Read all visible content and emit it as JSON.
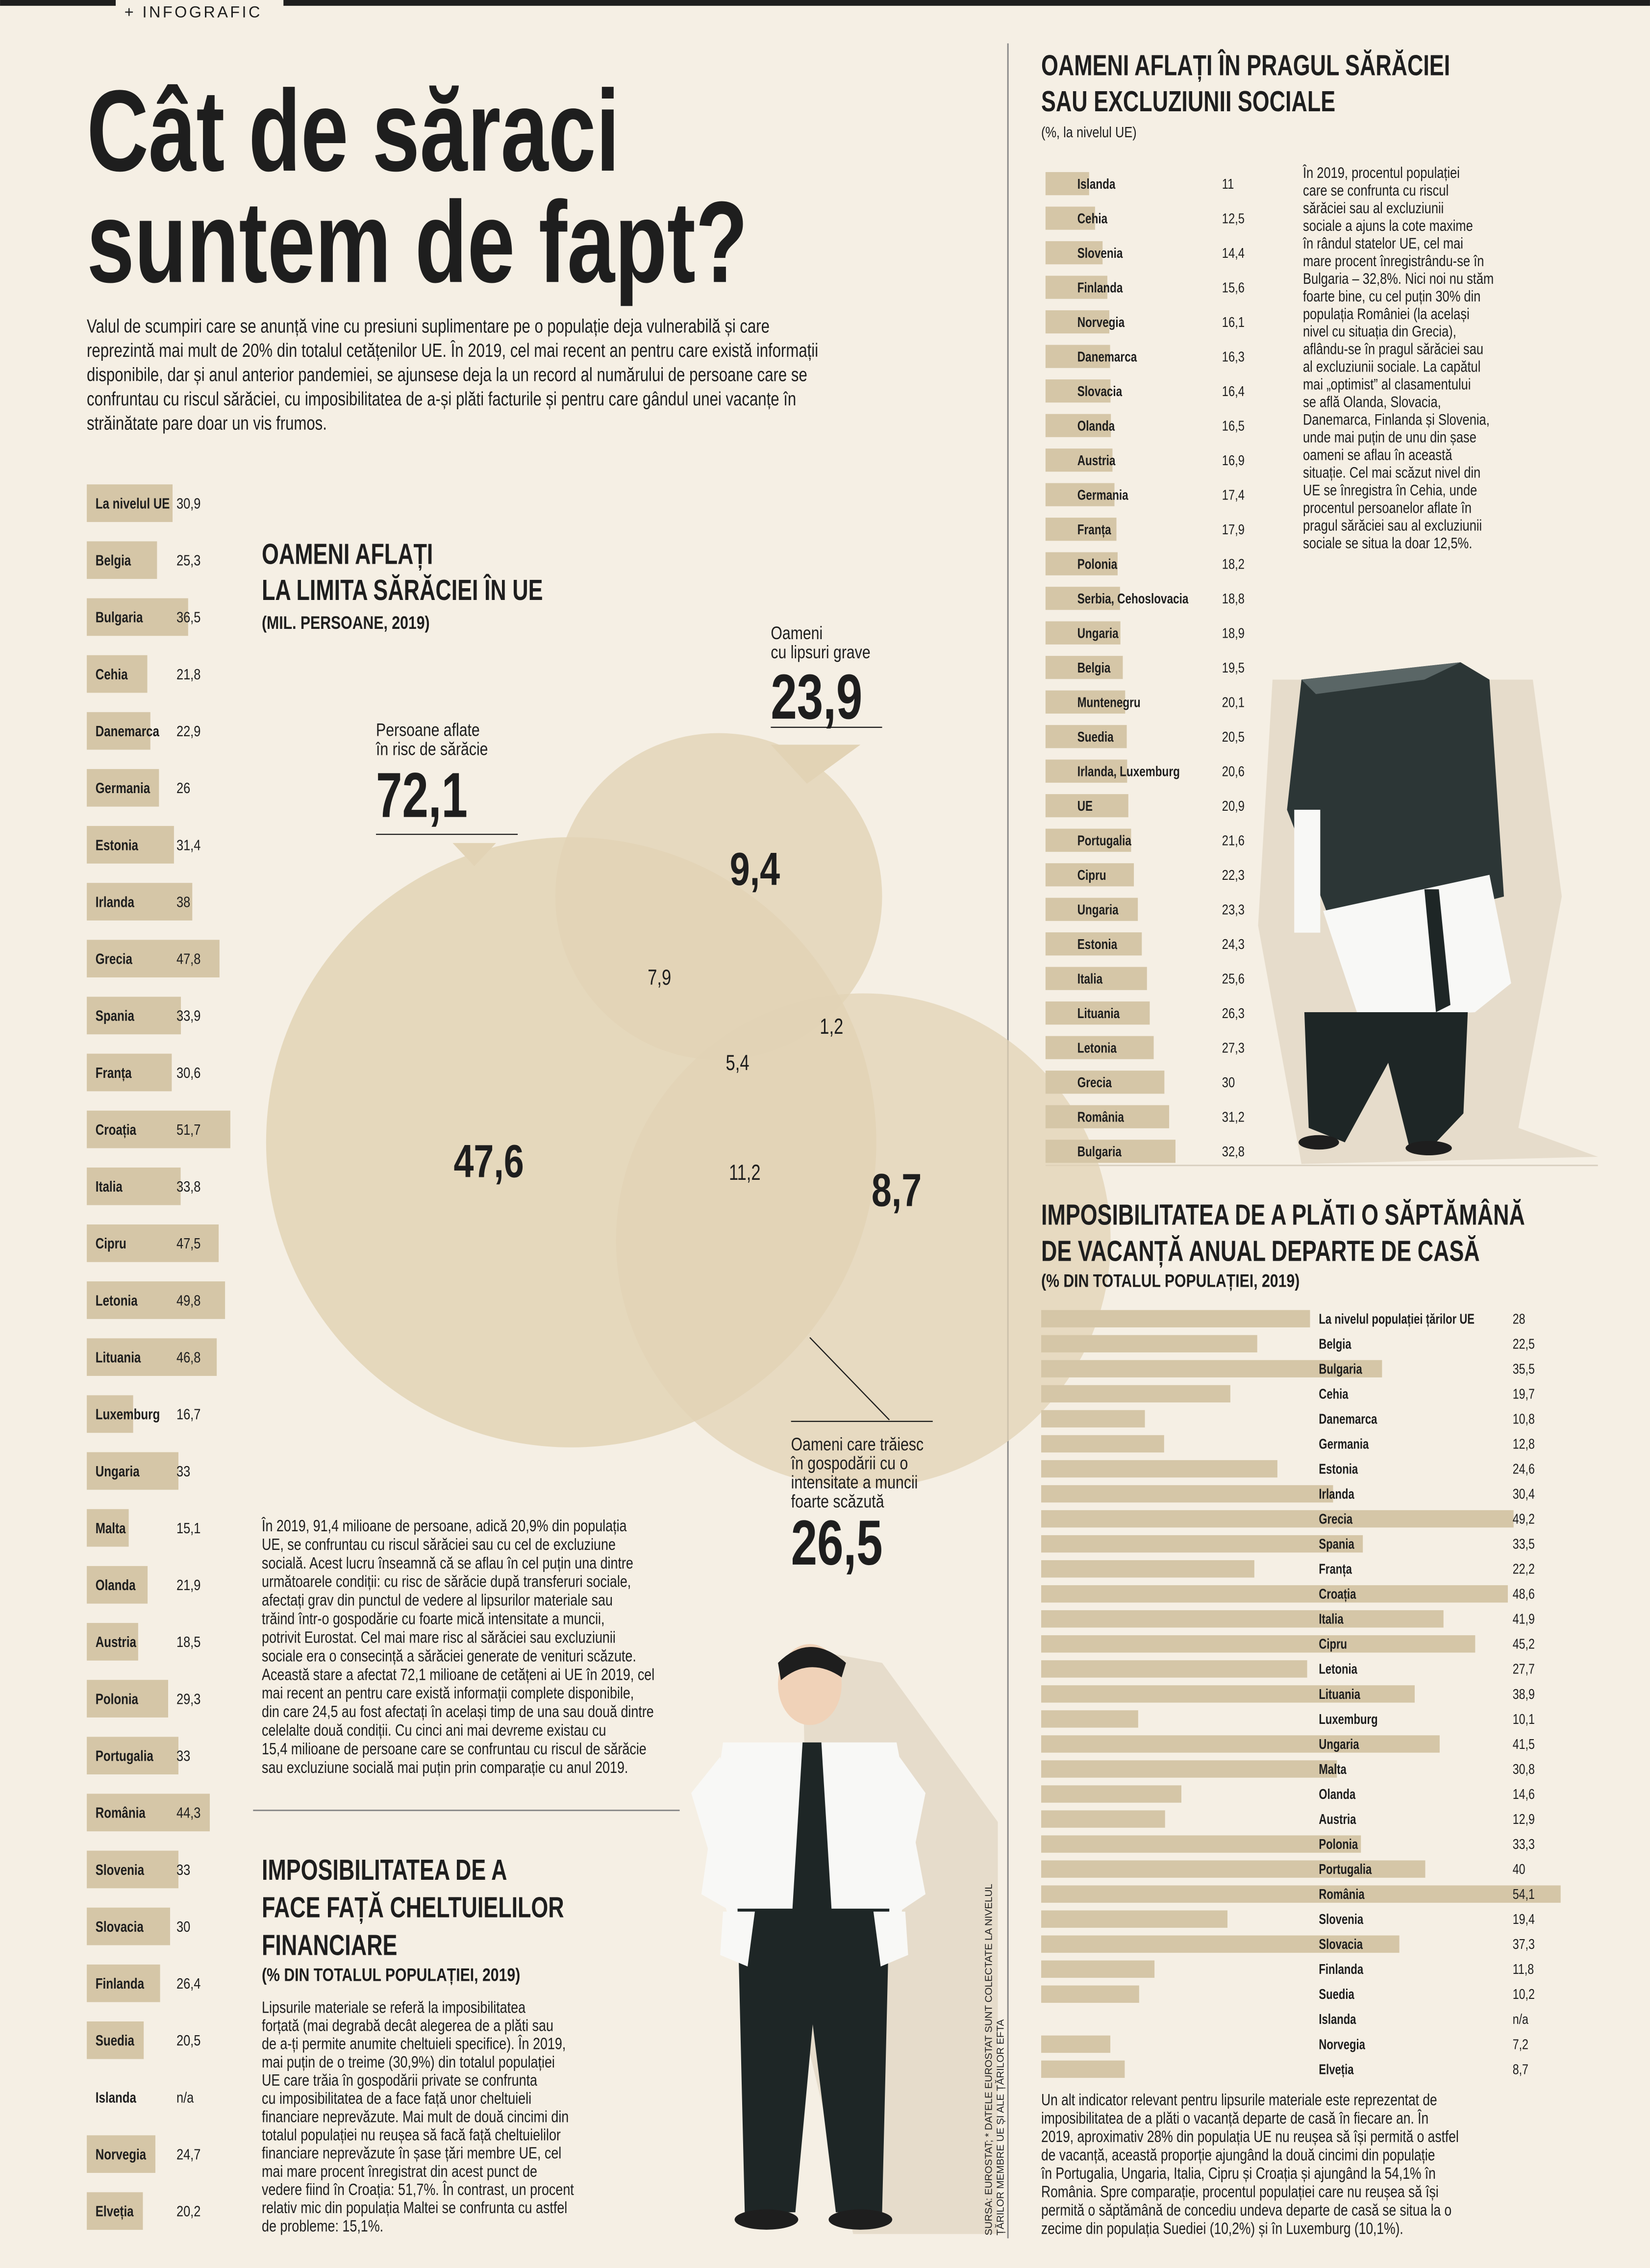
{
  "header": {
    "tag": "+ INFOGRAFIC",
    "title": [
      "Cât de săraci",
      "suntem de fapt?"
    ],
    "intro": [
      "Valul de scumpiri care se anunță vine cu presiuni suplimentare pe o populație deja vulnerabilă și care",
      "reprezintă mai mult de 20% din totalul cetățenilor UE. În 2019, cel mai recent an pentru care există informații",
      "disponibile, dar și anul anterior pandemiei, se ajunsese deja la un record al numărului de persoane care se",
      "confruntau cu riscul sărăciei, cu imposibilitatea de a-și plăti facturile și pentru care gândul unei vacanțe în",
      "străinătate pare doar un vis frumos."
    ]
  },
  "chart_data": [
    {
      "type": "bar",
      "title": [
        "IMPOSIBILITATEA DE A",
        "FACE FAȚĂ CHELTUIELILOR",
        "FINANCIARE"
      ],
      "subtitle": "(% DIN TOTALUL POPULAȚIEI, 2019)",
      "color": "#d5c6a7",
      "categories": [
        "La nivelul UE",
        "Belgia",
        "Bulgaria",
        "Cehia",
        "Danemarca",
        "Germania",
        "Estonia",
        "Irlanda",
        "Grecia",
        "Spania",
        "Franța",
        "Croația",
        "Italia",
        "Cipru",
        "Letonia",
        "Lituania",
        "Luxemburg",
        "Ungaria",
        "Malta",
        "Olanda",
        "Austria",
        "Polonia",
        "Portugalia",
        "România",
        "Slovenia",
        "Slovacia",
        "Finlanda",
        "Suedia",
        "Islanda",
        "Norvegia",
        "Elveția"
      ],
      "values": [
        30.9,
        25.3,
        36.5,
        21.8,
        22.9,
        26,
        31.4,
        38,
        47.8,
        33.9,
        30.6,
        51.7,
        33.8,
        47.5,
        49.8,
        46.8,
        16.7,
        33,
        15.1,
        21.9,
        18.5,
        29.3,
        33,
        44.3,
        33,
        30,
        26.4,
        20.5,
        null,
        24.7,
        20.2
      ],
      "value_labels": [
        "30,9",
        "25,3",
        "36,5",
        "21,8",
        "22,9",
        "26",
        "31,4",
        "38",
        "47,8",
        "33,9",
        "30,6",
        "51,7",
        "33,8",
        "47,5",
        "49,8",
        "46,8",
        "16,7",
        "33",
        "15,1",
        "21,9",
        "18,5",
        "29,3",
        "33",
        "44,3",
        "33",
        "30",
        "26,4",
        "20,5",
        "n/a",
        "24,7",
        "20,2"
      ],
      "text": [
        "Lipsurile materiale se referă la imposibilitatea",
        "forțată (mai degrabă decât alegerea de a plăti sau",
        "de a-ți permite anumite cheltuieli specifice). În 2019,",
        "mai puțin de o treime (30,9%) din totalul populației",
        "UE care trăia în gospodării private se confrunta",
        "cu imposibilitatea de a face față unor cheltuieli",
        "financiare neprevăzute. Mai mult de două cincimi din",
        "totalul populației nu reușea să facă față cheltuielilor",
        "financiare neprevăzute în șase țări membre UE, cel",
        "mai mare procent înregistrat din acest punct de",
        "vedere fiind în Croația: 51,7%. În contrast, un procent",
        "relativ mic din populația Maltei se confrunta cu astfel",
        "de probleme: 15,1%."
      ]
    },
    {
      "type": "venn",
      "title": [
        "OAMENI AFLAȚI",
        "LA LIMITA SĂRĂCIEI ÎN UE"
      ],
      "subtitle": "(MIL. PERSOANE, 2019)",
      "color": "#e2d3b5",
      "sets": [
        {
          "name": [
            "Persoane aflate",
            "în risc de sărăcie"
          ],
          "value": 72.1,
          "value_label": "72,1"
        },
        {
          "name": [
            "Oameni",
            "cu lipsuri grave"
          ],
          "value": 23.9,
          "value_label": "23,9"
        },
        {
          "name": [
            "Oameni care trăiesc",
            "în gospodării cu o",
            "intensitate a muncii",
            "foarte scăzută"
          ],
          "value": 26.5,
          "value_label": "26,5"
        }
      ],
      "values": [
        47.6,
        9.4,
        8.7,
        7.9,
        1.2,
        5.4,
        11.2
      ],
      "value_labels": [
        "47,6",
        "9,4",
        "8,7",
        "7,9",
        "1,2",
        "5,4",
        "11,2"
      ],
      "text": [
        "În 2019, 91,4 milioane de persoane, adică 20,9% din populația",
        "UE, se confruntau cu riscul sărăciei sau cu cel de excluziune",
        "socială. Acest lucru înseamnă că se aflau în cel puțin una dintre",
        "următoarele condiții: cu risc de sărăcie după transferuri sociale,",
        "afectați grav din punctul de vedere al lipsurilor materiale sau",
        "trăind într-o gospodărie cu foarte mică intensitate a muncii,",
        "potrivit Eurostat. Cel mai mare risc al sărăciei sau excluziunii",
        "sociale era o consecință a sărăciei generate de venituri scăzute.",
        "Această stare a afectat 72,1 milioane de cetățeni ai UE în 2019, cel",
        "mai recent an pentru care există informații complete disponibile,",
        "din care 24,5 au fost afectați în același timp de una sau două dintre",
        "celelalte două condiții. Cu cinci ani mai devreme existau cu",
        "15,4 milioane de persoane care se confruntau cu riscul de sărăcie",
        "sau excluziune socială mai puțin prin comparație cu anul 2019."
      ]
    },
    {
      "type": "bar",
      "title": [
        "OAMENI AFLAȚI ÎN PRAGUL SĂRĂCIEI",
        "SAU EXCLUZIUNII SOCIALE"
      ],
      "subtitle": "(%, la nivelul UE)",
      "color": "#d5c6a7",
      "categories": [
        "Islanda",
        "Cehia",
        "Slovenia",
        "Finlanda",
        "Norvegia",
        "Danemarca",
        "Slovacia",
        "Olanda",
        "Austria",
        "Germania",
        "Franța",
        "Polonia",
        "Serbia, Cehoslovacia",
        "Ungaria",
        "Belgia",
        "Muntenegru",
        "Suedia",
        "Irlanda, Luxemburg",
        "UE",
        "Portugalia",
        "Cipru",
        "Ungaria",
        "Estonia",
        "Italia",
        "Lituania",
        "Letonia",
        "Grecia",
        "România",
        "Bulgaria"
      ],
      "values": [
        11,
        12.5,
        14.4,
        15.6,
        16.1,
        16.3,
        16.4,
        16.5,
        16.9,
        17.4,
        17.9,
        18.2,
        18.8,
        18.9,
        19.5,
        20.1,
        20.5,
        20.6,
        20.9,
        21.6,
        22.3,
        23.3,
        24.3,
        25.6,
        26.3,
        27.3,
        30,
        31.2,
        32.8
      ],
      "value_labels": [
        "11",
        "12,5",
        "14,4",
        "15,6",
        "16,1",
        "16,3",
        "16,4",
        "16,5",
        "16,9",
        "17,4",
        "17,9",
        "18,2",
        "18,8",
        "18,9",
        "19,5",
        "20,1",
        "20,5",
        "20,6",
        "20,9",
        "21,6",
        "22,3",
        "23,3",
        "24,3",
        "25,6",
        "26,3",
        "27,3",
        "30",
        "31,2",
        "32,8"
      ],
      "text": [
        "În 2019, procentul populației",
        "care se confrunta cu riscul",
        "sărăciei sau al excluziunii",
        "sociale a ajuns la cote maxime",
        "în rândul statelor UE, cel mai",
        "mare procent înregistrându-se în",
        "Bulgaria – 32,8%. Nici noi nu stăm",
        "foarte bine, cu cel puțin 30% din",
        "populația României (la același",
        "nivel cu situația din Grecia),",
        "aflându-se în pragul sărăciei sau",
        "al excluziunii sociale. La capătul",
        "mai „optimist” al clasamentului",
        "se află Olanda, Slovacia,",
        "Danemarca, Finlanda și Slovenia,",
        "unde mai puțin de unu din șase",
        "oameni se aflau în această",
        "situație. Cel mai scăzut nivel din",
        "UE se înregistra în Cehia, unde",
        "procentul persoanelor aflate în",
        "pragul sărăciei sau al excluziunii",
        "sociale se situa la doar 12,5%."
      ]
    },
    {
      "type": "bar",
      "title": [
        "IMPOSIBILITATEA DE A PLĂTI O SĂPTĂMÂNĂ",
        "DE VACANȚĂ ANUAL DEPARTE DE CASĂ"
      ],
      "subtitle": "(% DIN TOTALUL POPULAȚIEI, 2019)",
      "color": "#d5c6a7",
      "categories": [
        "La nivelul populației țărilor UE",
        "Belgia",
        "Bulgaria",
        "Cehia",
        "Danemarca",
        "Germania",
        "Estonia",
        "Irlanda",
        "Grecia",
        "Spania",
        "Franța",
        "Croația",
        "Italia",
        "Cipru",
        "Letonia",
        "Lituania",
        "Luxemburg",
        "Ungaria",
        "Malta",
        "Olanda",
        "Austria",
        "Polonia",
        "Portugalia",
        "România",
        "Slovenia",
        "Slovacia",
        "Finlanda",
        "Suedia",
        "Islanda",
        "Norvegia",
        "Elveția"
      ],
      "values": [
        28,
        22.5,
        35.5,
        19.7,
        10.8,
        12.8,
        24.6,
        30.4,
        49.2,
        33.5,
        22.2,
        48.6,
        41.9,
        45.2,
        27.7,
        38.9,
        10.1,
        41.5,
        30.8,
        14.6,
        12.9,
        33.3,
        40,
        54.1,
        19.4,
        37.3,
        11.8,
        10.2,
        null,
        7.2,
        8.7
      ],
      "value_labels": [
        "28",
        "22,5",
        "35,5",
        "19,7",
        "10,8",
        "12,8",
        "24,6",
        "30,4",
        "49,2",
        "33,5",
        "22,2",
        "48,6",
        "41,9",
        "45,2",
        "27,7",
        "38,9",
        "10,1",
        "41,5",
        "30,8",
        "14,6",
        "12,9",
        "33,3",
        "40",
        "54,1",
        "19,4",
        "37,3",
        "11,8",
        "10,2",
        "n/a",
        "7,2",
        "8,7"
      ],
      "text": [
        "Un alt indicator relevant pentru lipsurile materiale este reprezentat de",
        "imposibilitatea de a plăti o vacanță departe de casă în fiecare an. În",
        "2019, aproximativ 28% din populația UE nu reușea să își permită o astfel",
        "de vacanță, această proporție ajungând la două cincimi din populație",
        "în Portugalia, Ungaria, Italia, Cipru și Croația și ajungând la 54,1% în",
        "România. Spre comparație, procentul populației care nu reușea să își",
        "permită o săptămână de concediu undeva departe de casă se situa la o",
        "zecime din populația Suediei (10,2%) și în Luxemburg (10,1%)."
      ]
    }
  ],
  "source": [
    "SURSA: EUROSTAT; * DATELE EUROSTAT SUNT COLECTATE LA NIVELUL",
    "ȚĂRILOR MEMBRE UE ȘI ALE ȚĂRILOR EFTA"
  ]
}
